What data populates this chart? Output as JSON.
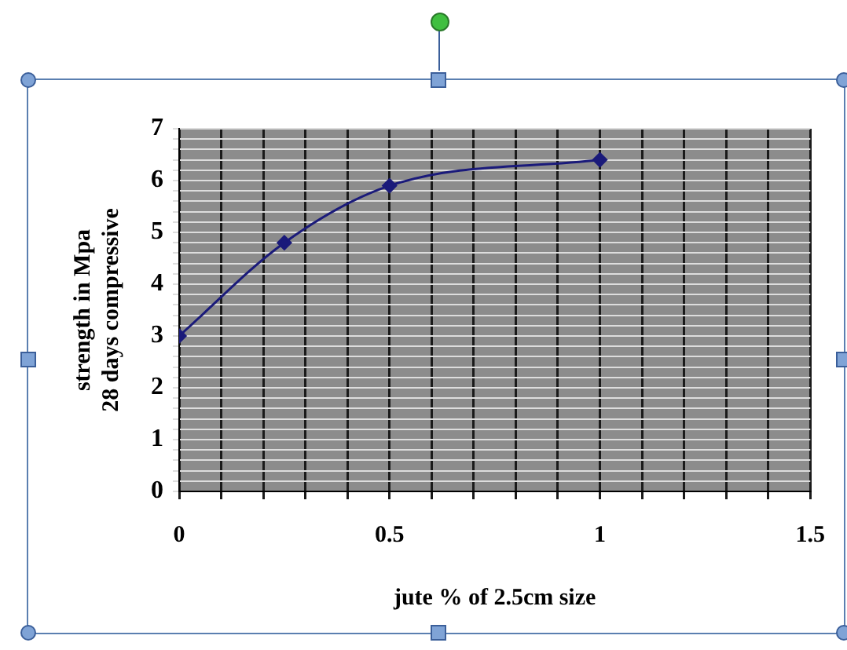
{
  "chart_data": {
    "type": "line",
    "xlabel": "jute % of 2.5cm size",
    "ylabel": "strength in Mpa\n28 days compressive",
    "x": [
      0,
      0.25,
      0.5,
      1
    ],
    "series": [
      {
        "color": "#1a1a7a",
        "values": [
          3,
          4.8,
          5.9,
          6.4
        ]
      }
    ],
    "xlim": [
      0,
      1.5
    ],
    "xticks": [
      0,
      {
        "value": 0.1,
        "label": null
      },
      {
        "value": 0.2,
        "label": null
      },
      {
        "value": 0.3,
        "label": null
      },
      {
        "value": 0.4,
        "label": null
      },
      0.5,
      {
        "value": 0.6,
        "label": null
      },
      {
        "value": 0.7,
        "label": null
      },
      {
        "value": 0.8,
        "label": null
      },
      {
        "value": 0.9,
        "label": null
      },
      1,
      {
        "value": 1.1,
        "label": null
      },
      {
        "value": 1.2,
        "label": null
      },
      {
        "value": 1.3,
        "label": null
      },
      {
        "value": 1.4,
        "label": null
      },
      1.5
    ],
    "ylim": [
      0,
      7
    ],
    "yticks": [
      0,
      {
        "value": 0.2,
        "label": null
      },
      {
        "value": 0.4,
        "label": null
      },
      {
        "value": 0.6,
        "label": null
      },
      {
        "value": 0.8,
        "label": null
      },
      1,
      {
        "value": 1.2,
        "label": null
      },
      {
        "value": 1.4,
        "label": null
      },
      {
        "value": 1.6,
        "label": null
      },
      {
        "value": 1.8,
        "label": null
      },
      2,
      {
        "value": 2.2,
        "label": null
      },
      {
        "value": 2.4,
        "label": null
      },
      {
        "value": 2.6,
        "label": null
      },
      {
        "value": 2.8,
        "label": null
      },
      3,
      {
        "value": 3.2,
        "label": null
      },
      {
        "value": 3.4,
        "label": null
      },
      {
        "value": 3.6,
        "label": null
      },
      {
        "value": 3.8,
        "label": null
      },
      4,
      {
        "value": 4.2,
        "label": null
      },
      {
        "value": 4.4,
        "label": null
      },
      {
        "value": 4.6,
        "label": null
      },
      {
        "value": 4.8,
        "label": null
      },
      5,
      {
        "value": 5.2,
        "label": null
      },
      {
        "value": 5.4,
        "label": null
      },
      {
        "value": 5.6,
        "label": null
      },
      {
        "value": 5.8,
        "label": null
      },
      6,
      {
        "value": 6.2,
        "label": null
      },
      {
        "value": 6.4,
        "label": null
      },
      {
        "value": 6.6,
        "label": null
      },
      {
        "value": 6.8,
        "label": null
      },
      7
    ],
    "grid": true,
    "legend": false,
    "marker": "diamond",
    "line_style": "solid"
  }
}
